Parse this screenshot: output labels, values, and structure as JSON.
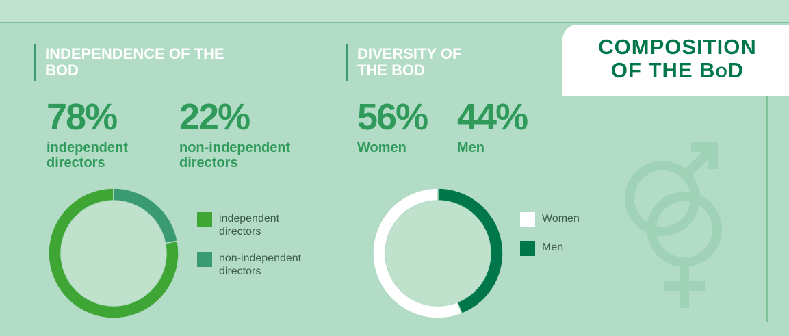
{
  "header": "COMPOSITION OF THE BoD",
  "chart_data": [
    {
      "type": "donut",
      "title": "INDEPENDENCE OF THE BOD",
      "categories": [
        "independent directors",
        "non-independent directors"
      ],
      "values": [
        78,
        22
      ],
      "value_labels": [
        "78%",
        "22%"
      ],
      "colors": [
        "#3fa535",
        "#3a9a72"
      ]
    },
    {
      "type": "donut",
      "title": "DIVERSITY OF THE BOD",
      "categories": [
        "Women",
        "Men"
      ],
      "values": [
        56,
        44
      ],
      "value_labels": [
        "56%",
        "44%"
      ],
      "colors": [
        "#ffffff",
        "#00774a"
      ]
    }
  ]
}
